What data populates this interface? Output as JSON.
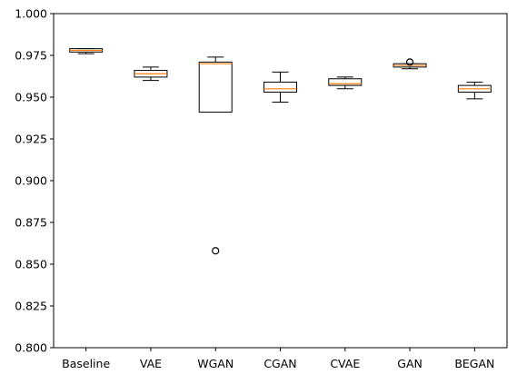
{
  "chart_data": {
    "type": "boxplot",
    "title": "",
    "xlabel": "",
    "ylabel": "",
    "ylim": [
      0.8,
      1.0
    ],
    "yticks": [
      0.8,
      0.825,
      0.85,
      0.875,
      0.9,
      0.925,
      0.95,
      0.975,
      1.0
    ],
    "ytick_labels": [
      "0.800",
      "0.825",
      "0.850",
      "0.875",
      "0.900",
      "0.925",
      "0.950",
      "0.975",
      "1.000"
    ],
    "categories": [
      "Baseline",
      "VAE",
      "WGAN",
      "CGAN",
      "CVAE",
      "GAN",
      "BEGAN"
    ],
    "median_color": "#ff7f0e",
    "grid": false,
    "boxes": [
      {
        "label": "Baseline",
        "whisker_low": 0.976,
        "q1": 0.977,
        "median": 0.978,
        "q3": 0.979,
        "whisker_high": 0.979,
        "fliers": []
      },
      {
        "label": "VAE",
        "whisker_low": 0.96,
        "q1": 0.962,
        "median": 0.964,
        "q3": 0.966,
        "whisker_high": 0.968,
        "fliers": []
      },
      {
        "label": "WGAN",
        "whisker_low": 0.941,
        "q1": 0.941,
        "median": 0.97,
        "q3": 0.971,
        "whisker_high": 0.974,
        "fliers": [
          0.858
        ]
      },
      {
        "label": "CGAN",
        "whisker_low": 0.947,
        "q1": 0.953,
        "median": 0.955,
        "q3": 0.959,
        "whisker_high": 0.965,
        "fliers": []
      },
      {
        "label": "CVAE",
        "whisker_low": 0.955,
        "q1": 0.957,
        "median": 0.958,
        "q3": 0.961,
        "whisker_high": 0.962,
        "fliers": []
      },
      {
        "label": "GAN",
        "whisker_low": 0.967,
        "q1": 0.968,
        "median": 0.969,
        "q3": 0.97,
        "whisker_high": 0.97,
        "fliers": [
          0.971
        ]
      },
      {
        "label": "BEGAN",
        "whisker_low": 0.949,
        "q1": 0.953,
        "median": 0.955,
        "q3": 0.957,
        "whisker_high": 0.959,
        "fliers": []
      }
    ]
  }
}
